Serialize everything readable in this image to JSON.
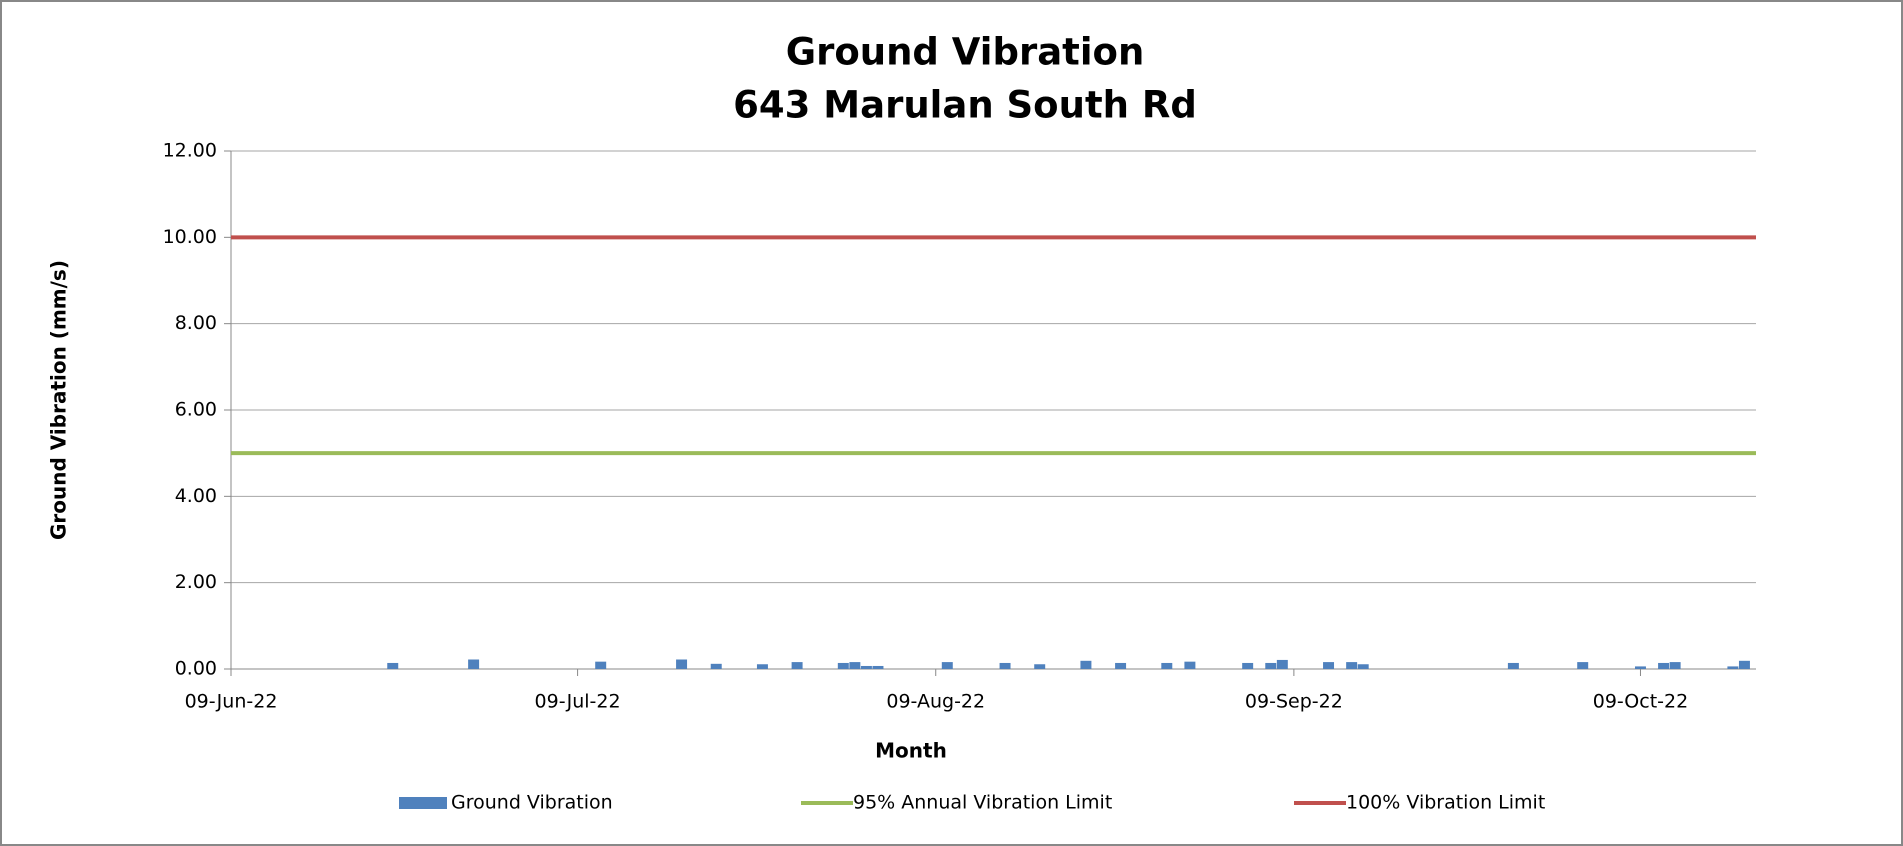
{
  "chart_data": {
    "type": "bar",
    "title": [
      "Ground Vibration",
      "643 Marulan South Rd"
    ],
    "x_label": "Month",
    "y_label": "Ground Vibration (mm/s)",
    "xlim": [
      "2022-06-09",
      "2022-10-19"
    ],
    "xticks": [
      {
        "value": "2022-06-09",
        "label": "09-Jun-22"
      },
      {
        "value": "2022-07-09",
        "label": "09-Jul-22"
      },
      {
        "value": "2022-08-09",
        "label": "09-Aug-22"
      },
      {
        "value": "2022-09-09",
        "label": "09-Sep-22"
      },
      {
        "value": "2022-10-09",
        "label": "09-Oct-22"
      }
    ],
    "ylim": [
      0,
      12
    ],
    "yticks": [
      {
        "value": 0,
        "label": "0.00"
      },
      {
        "value": 2,
        "label": "2.00"
      },
      {
        "value": 4,
        "label": "4.00"
      },
      {
        "value": 6,
        "label": "6.00"
      },
      {
        "value": 8,
        "label": "8.00"
      },
      {
        "value": 10,
        "label": "10.00"
      },
      {
        "value": 12,
        "label": "12.00"
      }
    ],
    "grid": true,
    "legend": "bottom",
    "series": [
      {
        "name": "Ground Vibration",
        "type": "bar",
        "color": "#4f81bd",
        "x": [
          "2022-06-23",
          "2022-06-30",
          "2022-07-11",
          "2022-07-18",
          "2022-07-21",
          "2022-07-25",
          "2022-07-28",
          "2022-08-01",
          "2022-08-02",
          "2022-08-03",
          "2022-08-04",
          "2022-08-10",
          "2022-08-15",
          "2022-08-18",
          "2022-08-22",
          "2022-08-25",
          "2022-08-29",
          "2022-08-31",
          "2022-09-05",
          "2022-09-07",
          "2022-09-08",
          "2022-09-12",
          "2022-09-14",
          "2022-09-15",
          "2022-09-28",
          "2022-10-04",
          "2022-10-09",
          "2022-10-11",
          "2022-10-12",
          "2022-10-17",
          "2022-10-18"
        ],
        "values": [
          0.14,
          0.22,
          0.17,
          0.22,
          0.12,
          0.11,
          0.16,
          0.14,
          0.16,
          0.07,
          0.07,
          0.16,
          0.14,
          0.11,
          0.19,
          0.14,
          0.14,
          0.17,
          0.14,
          0.14,
          0.21,
          0.16,
          0.16,
          0.11,
          0.14,
          0.16,
          0.06,
          0.14,
          0.16,
          0.06,
          0.19
        ]
      },
      {
        "name": "95% Annual Vibration Limit",
        "type": "line",
        "color": "#9bbb59",
        "x": [
          "2022-06-09",
          "2022-10-19"
        ],
        "values": [
          5,
          5
        ]
      },
      {
        "name": "100% Vibration Limit",
        "type": "line",
        "color": "#c0504d",
        "x": [
          "2022-06-09",
          "2022-10-19"
        ],
        "values": [
          10,
          10
        ]
      }
    ]
  }
}
